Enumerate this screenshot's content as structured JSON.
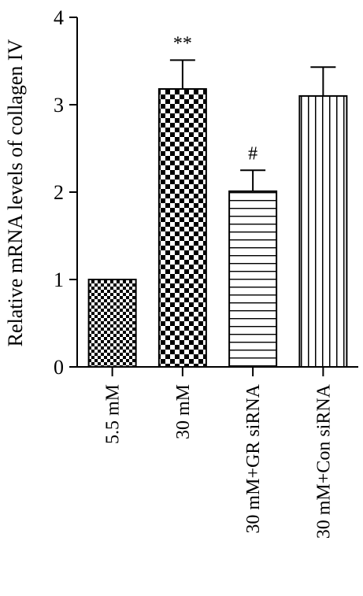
{
  "chart_data": {
    "type": "bar",
    "title": "",
    "xlabel": "",
    "ylabel": "Relative mRNA levels of collagen IV",
    "ylim": [
      0,
      4
    ],
    "yticks": [
      "0",
      "1",
      "2",
      "3",
      "4"
    ],
    "categories": [
      "5.5 mM",
      "30 mM",
      "30 mM+GR siRNA",
      "30 mM+Con siRNA"
    ],
    "values": [
      1.0,
      3.18,
      2.01,
      3.1
    ],
    "errors": [
      0.0,
      0.33,
      0.24,
      0.33
    ],
    "annotations": [
      "",
      "**",
      "#",
      ""
    ],
    "patterns": [
      "fine-checkerboard",
      "coarse-checkerboard",
      "horizontal-stripes",
      "vertical-stripes"
    ],
    "bar_color": "#000000",
    "grid": false,
    "legend": "none"
  }
}
